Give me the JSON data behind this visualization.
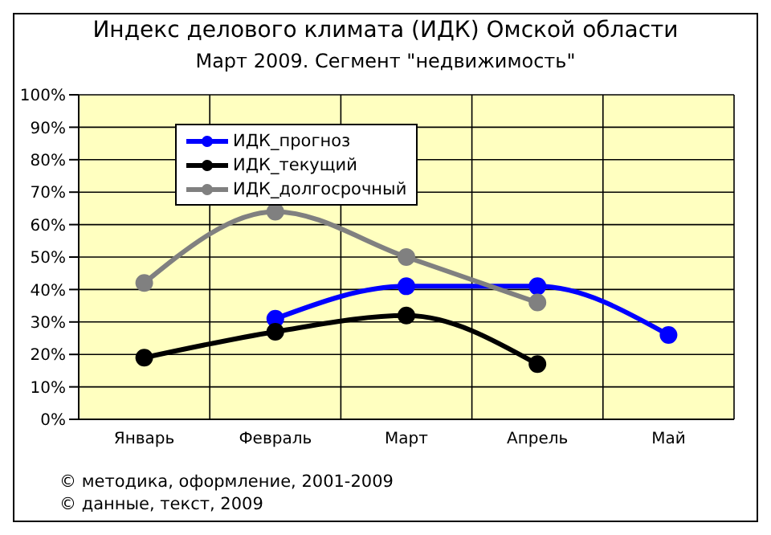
{
  "chart_data": {
    "type": "line",
    "title": "Индекс делового климата (ИДК) Омской области",
    "subtitle": "Март 2009. Сегмент \"недвижимость\"",
    "categories": [
      "Январь",
      "Февраль",
      "Март",
      "Апрель",
      "Май"
    ],
    "series": [
      {
        "name": "ИДК_прогноз",
        "color": "#0000ff",
        "values": [
          null,
          31,
          41,
          41,
          26
        ]
      },
      {
        "name": "ИДК_текущий",
        "color": "#000000",
        "values": [
          19,
          27,
          32,
          17,
          null
        ]
      },
      {
        "name": "ИДК_долгосрочный",
        "color": "#808080",
        "values": [
          42,
          64,
          50,
          36,
          null
        ]
      }
    ],
    "ylim": [
      0,
      100
    ],
    "yticks": [
      {
        "value": 0,
        "label": "0%"
      },
      {
        "value": 10,
        "label": "10%"
      },
      {
        "value": 20,
        "label": "20%"
      },
      {
        "value": 30,
        "label": "30%"
      },
      {
        "value": 40,
        "label": "40%"
      },
      {
        "value": 50,
        "label": "50%"
      },
      {
        "value": 60,
        "label": "60%"
      },
      {
        "value": 70,
        "label": "70%"
      },
      {
        "value": 80,
        "label": "80%"
      },
      {
        "value": 90,
        "label": "90%"
      },
      {
        "value": 100,
        "label": "100%"
      }
    ],
    "grid": true,
    "legend": "top left",
    "marker": "circle",
    "line_style": "solid",
    "annotations": [
      "© методика, оформление, 2001-2009",
      "© данные, текст, 2009"
    ]
  }
}
